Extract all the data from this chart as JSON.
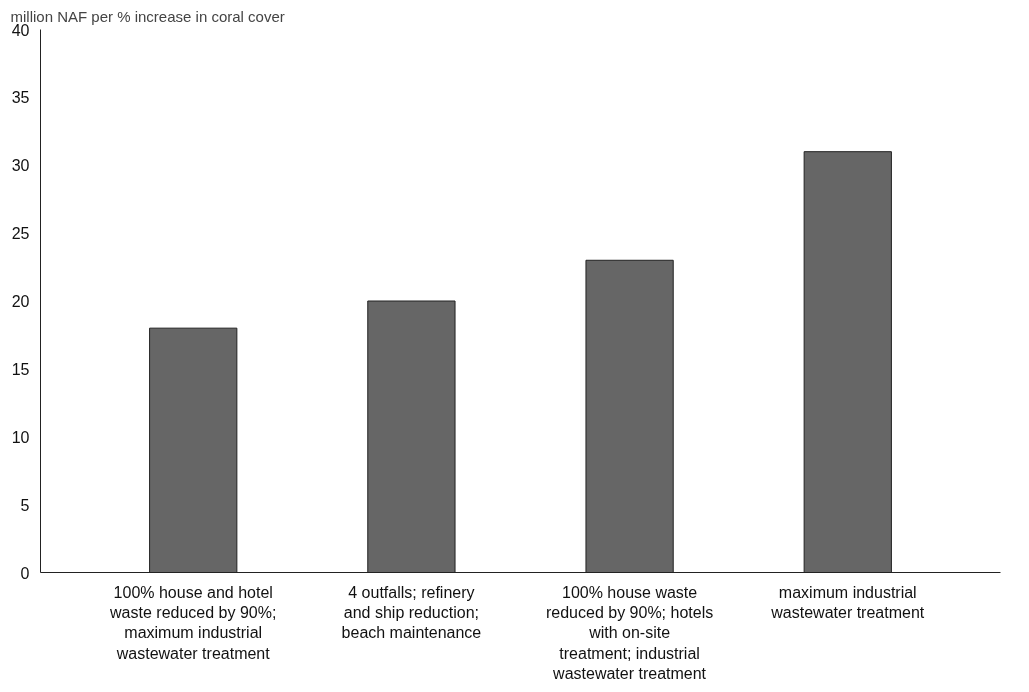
{
  "chart_data": {
    "type": "bar",
    "ylabel": "million NAF per % increase in coral cover",
    "categories": [
      "100% house and hotel waste reduced by 90%; maximum industrial wastewater treatment",
      "4 outfalls; refinery and ship reduction; beach maintenance",
      "100% house waste reduced by 90%; hotels with on-site treatment; industrial wastewater treatment",
      "maximum industrial wastewater treatment"
    ],
    "values": [
      18,
      20,
      23,
      31
    ],
    "color": "#666666",
    "ylim": [
      0,
      40
    ],
    "yticks": [
      0,
      5,
      10,
      15,
      20,
      25,
      30,
      35,
      40
    ],
    "grid": false
  }
}
